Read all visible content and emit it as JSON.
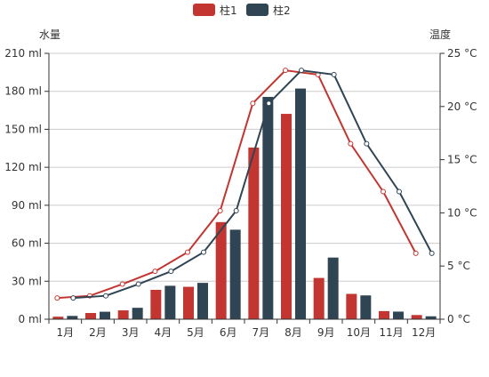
{
  "chart_data": {
    "type": "bar",
    "categories": [
      "1月",
      "2月",
      "3月",
      "4月",
      "5月",
      "6月",
      "7月",
      "8月",
      "9月",
      "10月",
      "11月",
      "12月"
    ],
    "series": [
      {
        "name": "柱1",
        "type": "bar",
        "axis": "left",
        "color": "#c23531",
        "values": [
          2.0,
          4.9,
          7.0,
          23.2,
          25.6,
          76.7,
          135.6,
          162.2,
          32.6,
          20.0,
          6.4,
          3.3
        ]
      },
      {
        "name": "柱2",
        "type": "bar",
        "axis": "left",
        "color": "#2f4554",
        "values": [
          2.6,
          5.9,
          9.0,
          26.4,
          28.7,
          70.7,
          175.6,
          182.2,
          48.7,
          18.8,
          6.0,
          2.3
        ]
      },
      {
        "name": "",
        "type": "line",
        "axis": "right",
        "color": "#c23531",
        "values": [
          2.0,
          2.2,
          3.3,
          4.5,
          6.3,
          10.2,
          20.3,
          23.4,
          23.0,
          16.5,
          12.0,
          6.2
        ]
      },
      {
        "name": "",
        "type": "line",
        "axis": "right",
        "color": "#2f4554",
        "values": [
          2.0,
          2.2,
          3.3,
          4.5,
          6.3,
          10.2,
          20.3,
          23.4,
          23.0,
          16.5,
          12.0,
          6.2
        ]
      }
    ],
    "y_left": {
      "label": "水量",
      "min": 0,
      "max": 210,
      "interval": 30,
      "unit": "ml"
    },
    "y_right": {
      "label": "温度",
      "min": 0,
      "max": 25,
      "interval": 5,
      "unit": "°C"
    },
    "legend": {
      "placement": "top-center",
      "items": [
        "柱1",
        "柱2"
      ]
    },
    "grid": true
  }
}
